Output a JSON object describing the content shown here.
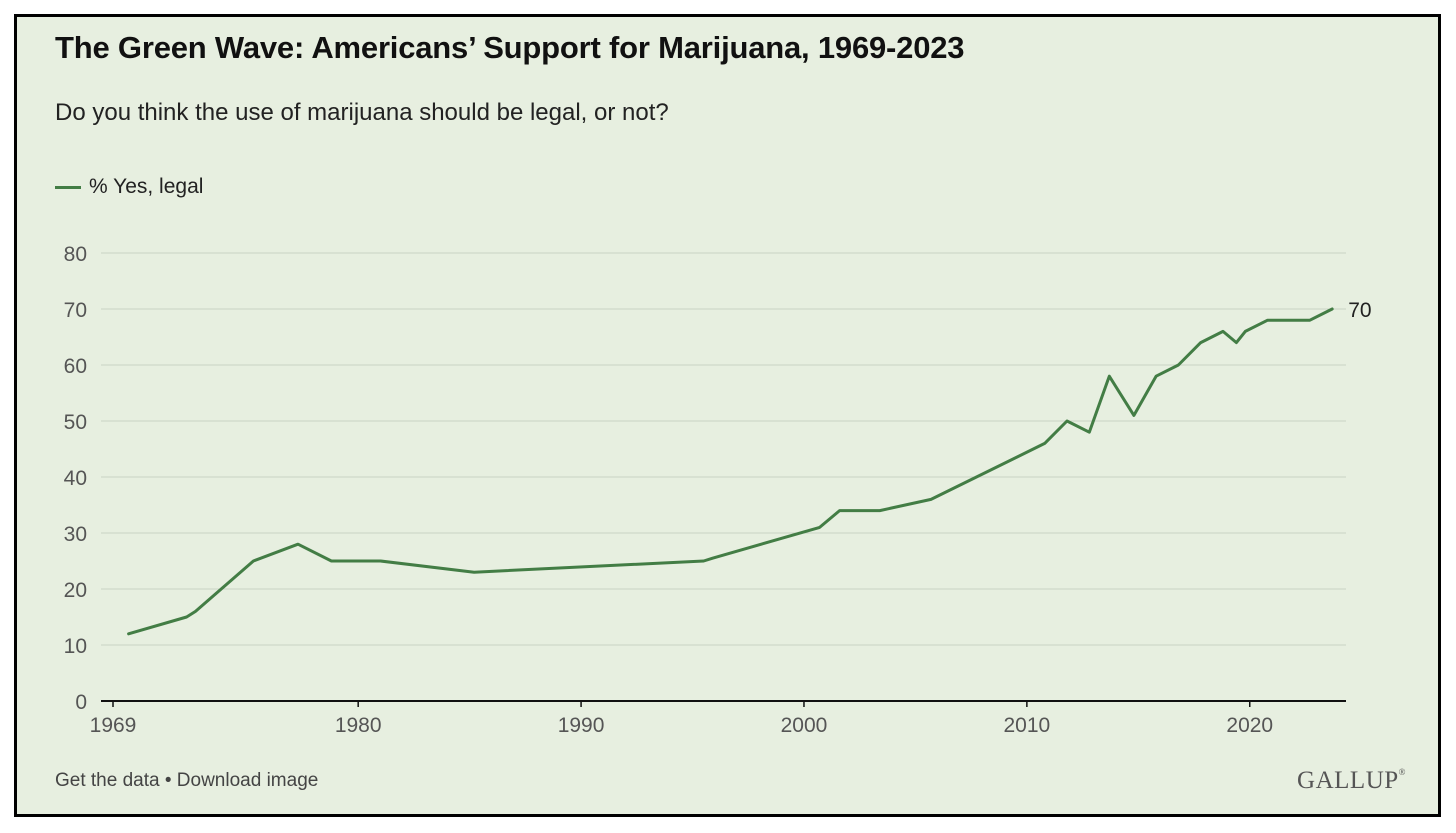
{
  "title": "The Green Wave: Americans’ Support for Marijuana, 1969-2023",
  "subtitle": "Do you think the use of marijuana should be legal, or not?",
  "footer": {
    "get_data": "Get the data",
    "separator": " • ",
    "download": "Download image"
  },
  "brand": "GALLUP",
  "colors": {
    "line": "#437d45",
    "background": "#e7efe0",
    "grid": "#c9d3c5"
  },
  "chart_data": {
    "type": "line",
    "title": "The Green Wave: Americans’ Support for Marijuana, 1969-2023",
    "xlabel": "",
    "ylabel": "",
    "xlim": [
      1969,
      2023.6
    ],
    "ylim": [
      0,
      80
    ],
    "x_ticks": [
      1969,
      1980,
      1990,
      2000,
      2010,
      2020
    ],
    "y_ticks": [
      0,
      10,
      20,
      30,
      40,
      50,
      60,
      70,
      80
    ],
    "grid": true,
    "legend_position": "top-left",
    "end_label": "70",
    "series": [
      {
        "name": "% Yes, legal",
        "x": [
          1969.7,
          1972.3,
          1972.7,
          1975.3,
          1977.3,
          1978.8,
          1980.2,
          1981,
          1985.2,
          1995.5,
          1995.9,
          2000.7,
          2001.6,
          2003.4,
          2005.7,
          2010.8,
          2011.8,
          2012.8,
          2013.7,
          2014.8,
          2015.8,
          2016.8,
          2017.8,
          2018.8,
          2019.4,
          2019.8,
          2020.8,
          2022.7,
          2023.7
        ],
        "values": [
          12,
          15,
          16,
          25,
          28,
          25,
          25,
          25,
          23,
          25,
          25.5,
          31,
          34,
          34,
          36,
          46,
          50,
          48,
          58,
          51,
          58,
          60,
          64,
          66,
          64,
          66,
          68,
          68,
          70
        ]
      }
    ]
  }
}
